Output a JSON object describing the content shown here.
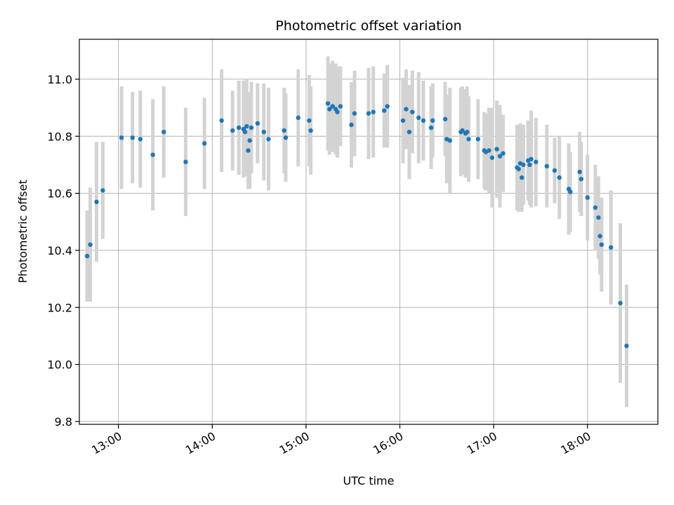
{
  "chart_data": {
    "type": "scatter",
    "title": "Photometric offset variation",
    "xlabel": "UTC time",
    "ylabel": "Photometric offset",
    "x_unit": "hours UTC",
    "xlim": [
      "12:35",
      "18:45"
    ],
    "ylim": [
      9.79,
      11.14
    ],
    "xticks": [
      "13:00",
      "14:00",
      "15:00",
      "16:00",
      "17:00",
      "18:00"
    ],
    "yticks": [
      "9.8",
      "10.0",
      "10.2",
      "10.4",
      "10.6",
      "10.8",
      "11.0"
    ],
    "grid": true,
    "colors": {
      "point": "#1f77b4",
      "errorbar": "#d3d3d3",
      "grid": "#b0b0b0"
    },
    "points": [
      {
        "t": "12:40",
        "y": 10.38,
        "err": 0.16
      },
      {
        "t": "12:42",
        "y": 10.42,
        "err": 0.2
      },
      {
        "t": "12:46",
        "y": 10.57,
        "err": 0.21
      },
      {
        "t": "12:50",
        "y": 10.61,
        "err": 0.17
      },
      {
        "t": "13:02",
        "y": 10.795,
        "err": 0.18
      },
      {
        "t": "13:09",
        "y": 10.795,
        "err": 0.16
      },
      {
        "t": "13:14",
        "y": 10.79,
        "err": 0.17
      },
      {
        "t": "13:22",
        "y": 10.735,
        "err": 0.195
      },
      {
        "t": "13:29",
        "y": 10.815,
        "err": 0.16
      },
      {
        "t": "13:43",
        "y": 10.71,
        "err": 0.19
      },
      {
        "t": "13:55",
        "y": 10.775,
        "err": 0.16
      },
      {
        "t": "14:06",
        "y": 10.855,
        "err": 0.18
      },
      {
        "t": "14:13",
        "y": 10.82,
        "err": 0.14
      },
      {
        "t": "14:17",
        "y": 10.83,
        "err": 0.165
      },
      {
        "t": "14:20",
        "y": 10.825,
        "err": 0.17
      },
      {
        "t": "14:21",
        "y": 10.815,
        "err": 0.155
      },
      {
        "t": "14:22",
        "y": 10.835,
        "err": 0.165
      },
      {
        "t": "14:23",
        "y": 10.75,
        "err": 0.135
      },
      {
        "t": "14:24",
        "y": 10.785,
        "err": 0.17
      },
      {
        "t": "14:25",
        "y": 10.83,
        "err": 0.16
      },
      {
        "t": "14:29",
        "y": 10.845,
        "err": 0.14
      },
      {
        "t": "14:33",
        "y": 10.815,
        "err": 0.17
      },
      {
        "t": "14:36",
        "y": 10.79,
        "err": 0.18
      },
      {
        "t": "14:46",
        "y": 10.82,
        "err": 0.15
      },
      {
        "t": "14:47",
        "y": 10.795,
        "err": 0.155
      },
      {
        "t": "14:55",
        "y": 10.865,
        "err": 0.17
      },
      {
        "t": "15:02",
        "y": 10.855,
        "err": 0.16
      },
      {
        "t": "15:03",
        "y": 10.82,
        "err": 0.155
      },
      {
        "t": "15:14",
        "y": 10.915,
        "err": 0.165
      },
      {
        "t": "15:15",
        "y": 10.895,
        "err": 0.16
      },
      {
        "t": "15:17",
        "y": 10.905,
        "err": 0.16
      },
      {
        "t": "15:19",
        "y": 10.895,
        "err": 0.16
      },
      {
        "t": "15:20",
        "y": 10.885,
        "err": 0.16
      },
      {
        "t": "15:22",
        "y": 10.905,
        "err": 0.14
      },
      {
        "t": "15:29",
        "y": 10.84,
        "err": 0.15
      },
      {
        "t": "15:31",
        "y": 10.88,
        "err": 0.15
      },
      {
        "t": "15:40",
        "y": 10.88,
        "err": 0.16
      },
      {
        "t": "15:43",
        "y": 10.885,
        "err": 0.16
      },
      {
        "t": "15:50",
        "y": 10.89,
        "err": 0.13
      },
      {
        "t": "15:52",
        "y": 10.905,
        "err": 0.145
      },
      {
        "t": "16:02",
        "y": 10.855,
        "err": 0.15
      },
      {
        "t": "16:04",
        "y": 10.895,
        "err": 0.14
      },
      {
        "t": "16:06",
        "y": 10.815,
        "err": 0.165
      },
      {
        "t": "16:08",
        "y": 10.885,
        "err": 0.145
      },
      {
        "t": "16:12",
        "y": 10.865,
        "err": 0.16
      },
      {
        "t": "16:15",
        "y": 10.855,
        "err": 0.14
      },
      {
        "t": "16:20",
        "y": 10.83,
        "err": 0.145
      },
      {
        "t": "16:21",
        "y": 10.855,
        "err": 0.13
      },
      {
        "t": "16:29",
        "y": 10.86,
        "err": 0.13
      },
      {
        "t": "16:30",
        "y": 10.79,
        "err": 0.155
      },
      {
        "t": "16:32",
        "y": 10.785,
        "err": 0.185
      },
      {
        "t": "16:39",
        "y": 10.815,
        "err": 0.155
      },
      {
        "t": "16:40",
        "y": 10.82,
        "err": 0.155
      },
      {
        "t": "16:42",
        "y": 10.81,
        "err": 0.155
      },
      {
        "t": "16:43",
        "y": 10.815,
        "err": 0.16
      },
      {
        "t": "16:44",
        "y": 10.79,
        "err": 0.15
      },
      {
        "t": "16:50",
        "y": 10.79,
        "err": 0.14
      },
      {
        "t": "16:54",
        "y": 10.75,
        "err": 0.135
      },
      {
        "t": "16:55",
        "y": 10.745,
        "err": 0.135
      },
      {
        "t": "16:57",
        "y": 10.75,
        "err": 0.15
      },
      {
        "t": "16:59",
        "y": 10.725,
        "err": 0.175
      },
      {
        "t": "17:02",
        "y": 10.755,
        "err": 0.17
      },
      {
        "t": "17:04",
        "y": 10.73,
        "err": 0.18
      },
      {
        "t": "17:06",
        "y": 10.74,
        "err": 0.135
      },
      {
        "t": "17:15",
        "y": 10.69,
        "err": 0.15
      },
      {
        "t": "17:16",
        "y": 10.685,
        "err": 0.15
      },
      {
        "t": "17:17",
        "y": 10.705,
        "err": 0.14
      },
      {
        "t": "17:18",
        "y": 10.655,
        "err": 0.12
      },
      {
        "t": "17:19",
        "y": 10.7,
        "err": 0.14
      },
      {
        "t": "17:22",
        "y": 10.715,
        "err": 0.14
      },
      {
        "t": "17:23",
        "y": 10.7,
        "err": 0.14
      },
      {
        "t": "17:24",
        "y": 10.72,
        "err": 0.17
      },
      {
        "t": "17:27",
        "y": 10.71,
        "err": 0.155
      },
      {
        "t": "17:34",
        "y": 10.695,
        "err": 0.145
      },
      {
        "t": "17:39",
        "y": 10.68,
        "err": 0.115
      },
      {
        "t": "17:42",
        "y": 10.655,
        "err": 0.145
      },
      {
        "t": "17:48",
        "y": 10.615,
        "err": 0.16
      },
      {
        "t": "17:49",
        "y": 10.605,
        "err": 0.14
      },
      {
        "t": "17:55",
        "y": 10.675,
        "err": 0.14
      },
      {
        "t": "17:56",
        "y": 10.65,
        "err": 0.13
      },
      {
        "t": "18:00",
        "y": 10.585,
        "err": 0.15
      },
      {
        "t": "18:05",
        "y": 10.55,
        "err": 0.15
      },
      {
        "t": "18:07",
        "y": 10.515,
        "err": 0.145
      },
      {
        "t": "18:08",
        "y": 10.45,
        "err": 0.135
      },
      {
        "t": "18:09",
        "y": 10.42,
        "err": 0.165
      },
      {
        "t": "18:15",
        "y": 10.41,
        "err": 0.2
      },
      {
        "t": "18:21",
        "y": 10.215,
        "err": 0.28
      },
      {
        "t": "18:25",
        "y": 10.065,
        "err": 0.215
      }
    ]
  }
}
